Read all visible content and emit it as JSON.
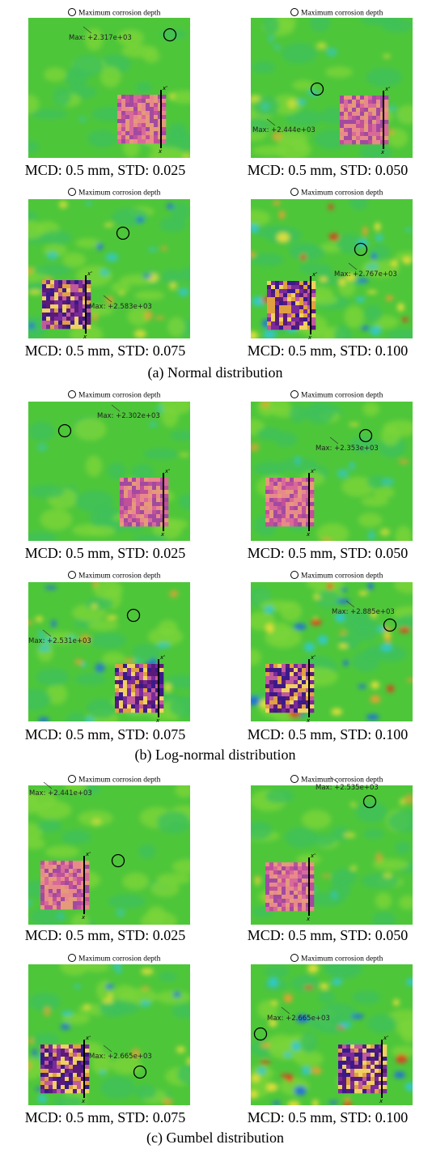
{
  "sections": [
    {
      "caption": "(a) Normal distribution",
      "panels": [
        {
          "legend": "Maximum corrosion depth",
          "max_label": "Max: +2.317e+03",
          "axis_labels": [
            "x'",
            "x"
          ],
          "caption": "MCD: 0.5 mm, STD: 0.025"
        },
        {
          "legend": "Maximum corrosion depth",
          "max_label": "Max: +2.444e+03",
          "axis_labels": [
            "x'",
            "x"
          ],
          "caption": "MCD: 0.5 mm, STD: 0.050"
        },
        {
          "legend": "Maximum corrosion depth",
          "max_label": "Max: +2.583e+03",
          "axis_labels": [
            "x'",
            "x"
          ],
          "caption": "MCD: 0.5 mm, STD: 0.075"
        },
        {
          "legend": "Maximum corrosion depth",
          "max_label": "Max: +2.767e+03",
          "axis_labels": [
            "x'",
            "x"
          ],
          "caption": "MCD: 0.5 mm, STD: 0.100"
        }
      ]
    },
    {
      "caption": "(b) Log-normal distribution",
      "panels": [
        {
          "legend": "Maximum corrosion depth",
          "max_label": "Max: +2.302e+03",
          "axis_labels": [
            "x'",
            "x"
          ],
          "caption": "MCD: 0.5 mm, STD: 0.025"
        },
        {
          "legend": "Maximum corrosion depth",
          "max_label": "Max: +2.353e+03",
          "axis_labels": [
            "x'",
            "x"
          ],
          "caption": "MCD: 0.5 mm, STD: 0.050"
        },
        {
          "legend": "Maximum corrosion depth",
          "max_label": "Max: +2.531e+03",
          "axis_labels": [
            "x'",
            "x"
          ],
          "caption": "MCD: 0.5 mm, STD: 0.075"
        },
        {
          "legend": "Maximum corrosion depth",
          "max_label": "Max: +2.885e+03",
          "axis_labels": [
            "x'",
            "x"
          ],
          "caption": "MCD: 0.5 mm, STD: 0.100"
        }
      ]
    },
    {
      "caption": "(c) Gumbel distribution",
      "panels": [
        {
          "legend": "Maximum corrosion depth",
          "max_label": "Max: +2.441e+03",
          "axis_labels": [
            "x'",
            "x"
          ],
          "caption": "MCD: 0.5 mm, STD: 0.025"
        },
        {
          "legend": "Maximum corrosion depth",
          "max_label": "Max: +2.535e+03",
          "axis_labels": [
            "x'",
            "x"
          ],
          "caption": "MCD: 0.5 mm, STD: 0.050"
        },
        {
          "legend": "Maximum corrosion depth",
          "max_label": "Max: +2.665e+03",
          "axis_labels": [
            "x'",
            "x"
          ],
          "caption": "MCD: 0.5 mm, STD: 0.075"
        },
        {
          "legend": "Maximum corrosion depth",
          "max_label": "Max: +2.665e+03",
          "axis_labels": [
            "x'",
            "x"
          ],
          "caption": "MCD: 0.5 mm, STD: 0.100"
        }
      ]
    }
  ]
}
